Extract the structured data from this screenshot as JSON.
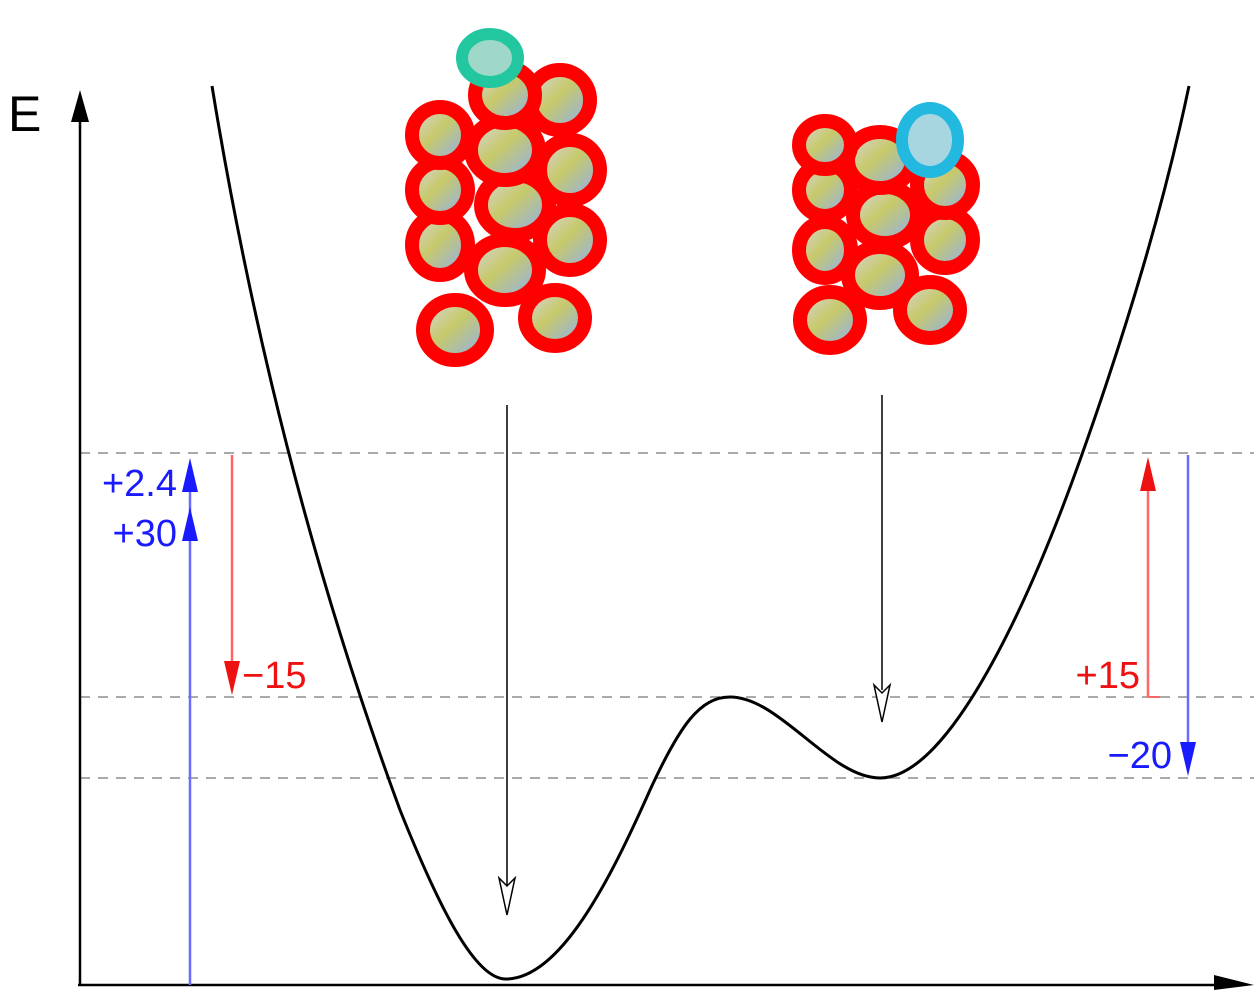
{
  "axis": {
    "y_label": "E"
  },
  "colors": {
    "curve": "#000000",
    "blue": "#1a1aff",
    "red": "#ee1111",
    "dashed": "#aaaaaa",
    "helix_red": "#ff0000"
  },
  "labels": {
    "left_blue_top": "+2.4",
    "left_blue_bottom": "+30",
    "left_red": "−15",
    "right_red": "+15",
    "right_blue": "−20"
  },
  "structures": [
    {
      "name": "left-helix-bundle",
      "position": "above-global-minimum"
    },
    {
      "name": "right-helix-bundle",
      "position": "above-local-minimum"
    }
  ]
}
